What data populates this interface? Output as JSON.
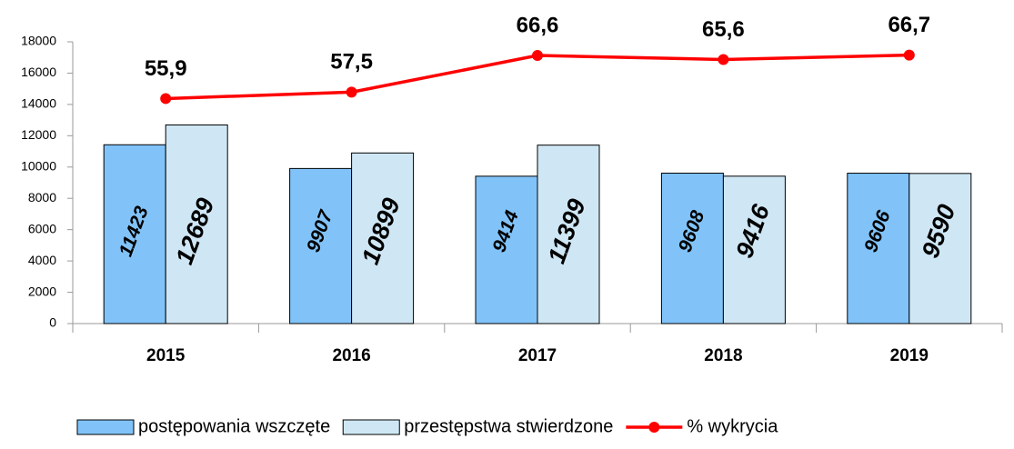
{
  "chart_data": {
    "type": "bar",
    "categories": [
      "2015",
      "2016",
      "2017",
      "2018",
      "2019"
    ],
    "series": [
      {
        "name": "postępowania wszczęte",
        "color": "#81c3f9",
        "values": [
          11423,
          9907,
          9414,
          9608,
          9606
        ]
      },
      {
        "name": "przestępstwa stwierdzone",
        "color": "#cfe7f5",
        "values": [
          12689,
          10899,
          11399,
          9416,
          9590
        ]
      },
      {
        "name": "% wykrycia",
        "color": "#ff0000",
        "type": "line",
        "axis": "y2",
        "values": [
          55.9,
          57.5,
          66.6,
          65.6,
          66.7
        ],
        "value_labels": [
          "55,9",
          "57,5",
          "66,6",
          "65,6",
          "66,7"
        ]
      }
    ],
    "ylim": [
      0,
      18000
    ],
    "yticks": [
      0,
      2000,
      4000,
      6000,
      8000,
      10000,
      12000,
      14000,
      16000,
      18000
    ],
    "y2lim": [
      0,
      70
    ],
    "legend": "bottom",
    "grid": false
  }
}
